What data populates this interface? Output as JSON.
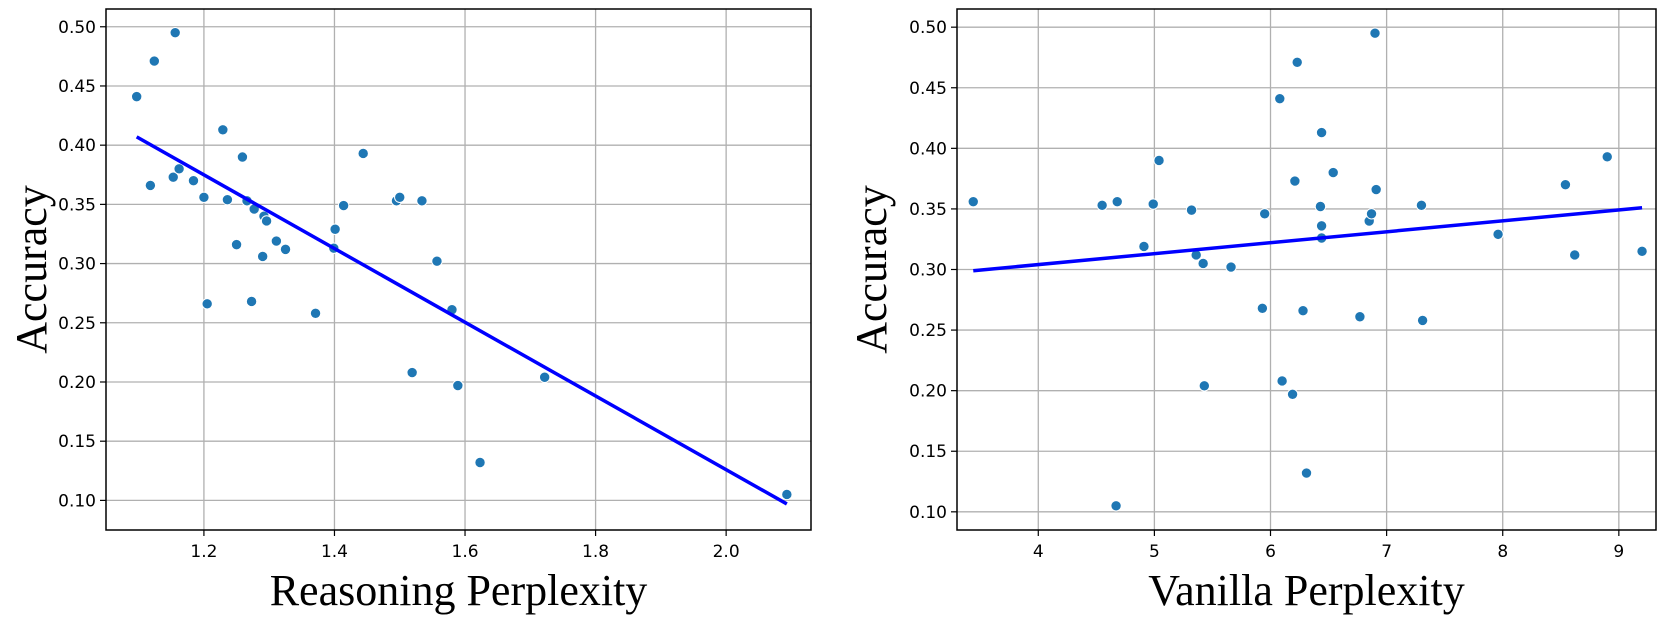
{
  "chart_data": [
    {
      "type": "scatter",
      "xlabel": "Reasoning Perplexity",
      "ylabel": "Accuracy",
      "xlim": [
        1.05,
        2.13
      ],
      "ylim": [
        0.075,
        0.515
      ],
      "xticks": [
        1.2,
        1.4,
        1.6,
        1.8,
        2.0
      ],
      "xtick_labels": [
        "1.2",
        "1.4",
        "1.6",
        "1.8",
        "2.0"
      ],
      "yticks": [
        0.1,
        0.15,
        0.2,
        0.25,
        0.3,
        0.35,
        0.4,
        0.45,
        0.5
      ],
      "ytick_labels": [
        "0.10",
        "0.15",
        "0.20",
        "0.25",
        "0.30",
        "0.35",
        "0.40",
        "0.45",
        "0.50"
      ],
      "grid": true,
      "point_color": "#1f77b4",
      "line_color": "#0000ff",
      "points": [
        {
          "x": 1.097,
          "y": 0.441
        },
        {
          "x": 1.118,
          "y": 0.366
        },
        {
          "x": 1.124,
          "y": 0.471
        },
        {
          "x": 1.153,
          "y": 0.373
        },
        {
          "x": 1.156,
          "y": 0.495
        },
        {
          "x": 1.162,
          "y": 0.38
        },
        {
          "x": 1.184,
          "y": 0.37
        },
        {
          "x": 1.2,
          "y": 0.356
        },
        {
          "x": 1.205,
          "y": 0.266
        },
        {
          "x": 1.229,
          "y": 0.413
        },
        {
          "x": 1.236,
          "y": 0.354
        },
        {
          "x": 1.25,
          "y": 0.316
        },
        {
          "x": 1.259,
          "y": 0.39
        },
        {
          "x": 1.266,
          "y": 0.353
        },
        {
          "x": 1.273,
          "y": 0.268
        },
        {
          "x": 1.277,
          "y": 0.346
        },
        {
          "x": 1.29,
          "y": 0.306
        },
        {
          "x": 1.292,
          "y": 0.34
        },
        {
          "x": 1.296,
          "y": 0.336
        },
        {
          "x": 1.311,
          "y": 0.319
        },
        {
          "x": 1.325,
          "y": 0.312
        },
        {
          "x": 1.371,
          "y": 0.258
        },
        {
          "x": 1.399,
          "y": 0.313
        },
        {
          "x": 1.401,
          "y": 0.329
        },
        {
          "x": 1.414,
          "y": 0.349
        },
        {
          "x": 1.444,
          "y": 0.393
        },
        {
          "x": 1.495,
          "y": 0.353
        },
        {
          "x": 1.5,
          "y": 0.356
        },
        {
          "x": 1.519,
          "y": 0.208
        },
        {
          "x": 1.534,
          "y": 0.353
        },
        {
          "x": 1.557,
          "y": 0.302
        },
        {
          "x": 1.58,
          "y": 0.261
        },
        {
          "x": 1.589,
          "y": 0.197
        },
        {
          "x": 1.623,
          "y": 0.132
        },
        {
          "x": 1.722,
          "y": 0.204
        },
        {
          "x": 2.093,
          "y": 0.105
        }
      ],
      "trendline": {
        "x": [
          1.097,
          2.093
        ],
        "y": [
          0.407,
          0.097
        ]
      }
    },
    {
      "type": "scatter",
      "xlabel": "Vanilla Perplexity",
      "ylabel": "Accuracy",
      "xlim": [
        3.3,
        9.32
      ],
      "ylim": [
        0.085,
        0.515
      ],
      "xticks": [
        4,
        5,
        6,
        7,
        8,
        9
      ],
      "xtick_labels": [
        "4",
        "5",
        "6",
        "7",
        "8",
        "9"
      ],
      "yticks": [
        0.1,
        0.15,
        0.2,
        0.25,
        0.3,
        0.35,
        0.4,
        0.45,
        0.5
      ],
      "ytick_labels": [
        "0.10",
        "0.15",
        "0.20",
        "0.25",
        "0.30",
        "0.35",
        "0.40",
        "0.45",
        "0.50"
      ],
      "grid": true,
      "point_color": "#1f77b4",
      "line_color": "#0000ff",
      "points": [
        {
          "x": 3.44,
          "y": 0.356
        },
        {
          "x": 4.55,
          "y": 0.353
        },
        {
          "x": 4.67,
          "y": 0.105
        },
        {
          "x": 4.68,
          "y": 0.356
        },
        {
          "x": 4.91,
          "y": 0.319
        },
        {
          "x": 4.99,
          "y": 0.354
        },
        {
          "x": 5.04,
          "y": 0.39
        },
        {
          "x": 5.32,
          "y": 0.349
        },
        {
          "x": 5.36,
          "y": 0.312
        },
        {
          "x": 5.42,
          "y": 0.305
        },
        {
          "x": 5.43,
          "y": 0.204
        },
        {
          "x": 5.66,
          "y": 0.302
        },
        {
          "x": 5.93,
          "y": 0.268
        },
        {
          "x": 5.95,
          "y": 0.346
        },
        {
          "x": 6.08,
          "y": 0.441
        },
        {
          "x": 6.1,
          "y": 0.208
        },
        {
          "x": 6.19,
          "y": 0.197
        },
        {
          "x": 6.21,
          "y": 0.373
        },
        {
          "x": 6.23,
          "y": 0.471
        },
        {
          "x": 6.28,
          "y": 0.266
        },
        {
          "x": 6.31,
          "y": 0.132
        },
        {
          "x": 6.43,
          "y": 0.352
        },
        {
          "x": 6.44,
          "y": 0.336
        },
        {
          "x": 6.44,
          "y": 0.413
        },
        {
          "x": 6.44,
          "y": 0.326
        },
        {
          "x": 6.54,
          "y": 0.38
        },
        {
          "x": 6.77,
          "y": 0.261
        },
        {
          "x": 6.85,
          "y": 0.34
        },
        {
          "x": 6.87,
          "y": 0.346
        },
        {
          "x": 6.9,
          "y": 0.495
        },
        {
          "x": 6.91,
          "y": 0.366
        },
        {
          "x": 7.3,
          "y": 0.353
        },
        {
          "x": 7.31,
          "y": 0.258
        },
        {
          "x": 7.96,
          "y": 0.329
        },
        {
          "x": 8.54,
          "y": 0.37
        },
        {
          "x": 8.62,
          "y": 0.312
        },
        {
          "x": 8.9,
          "y": 0.393
        },
        {
          "x": 9.2,
          "y": 0.315
        }
      ],
      "trendline": {
        "x": [
          3.44,
          9.2
        ],
        "y": [
          0.299,
          0.351
        ]
      }
    }
  ]
}
